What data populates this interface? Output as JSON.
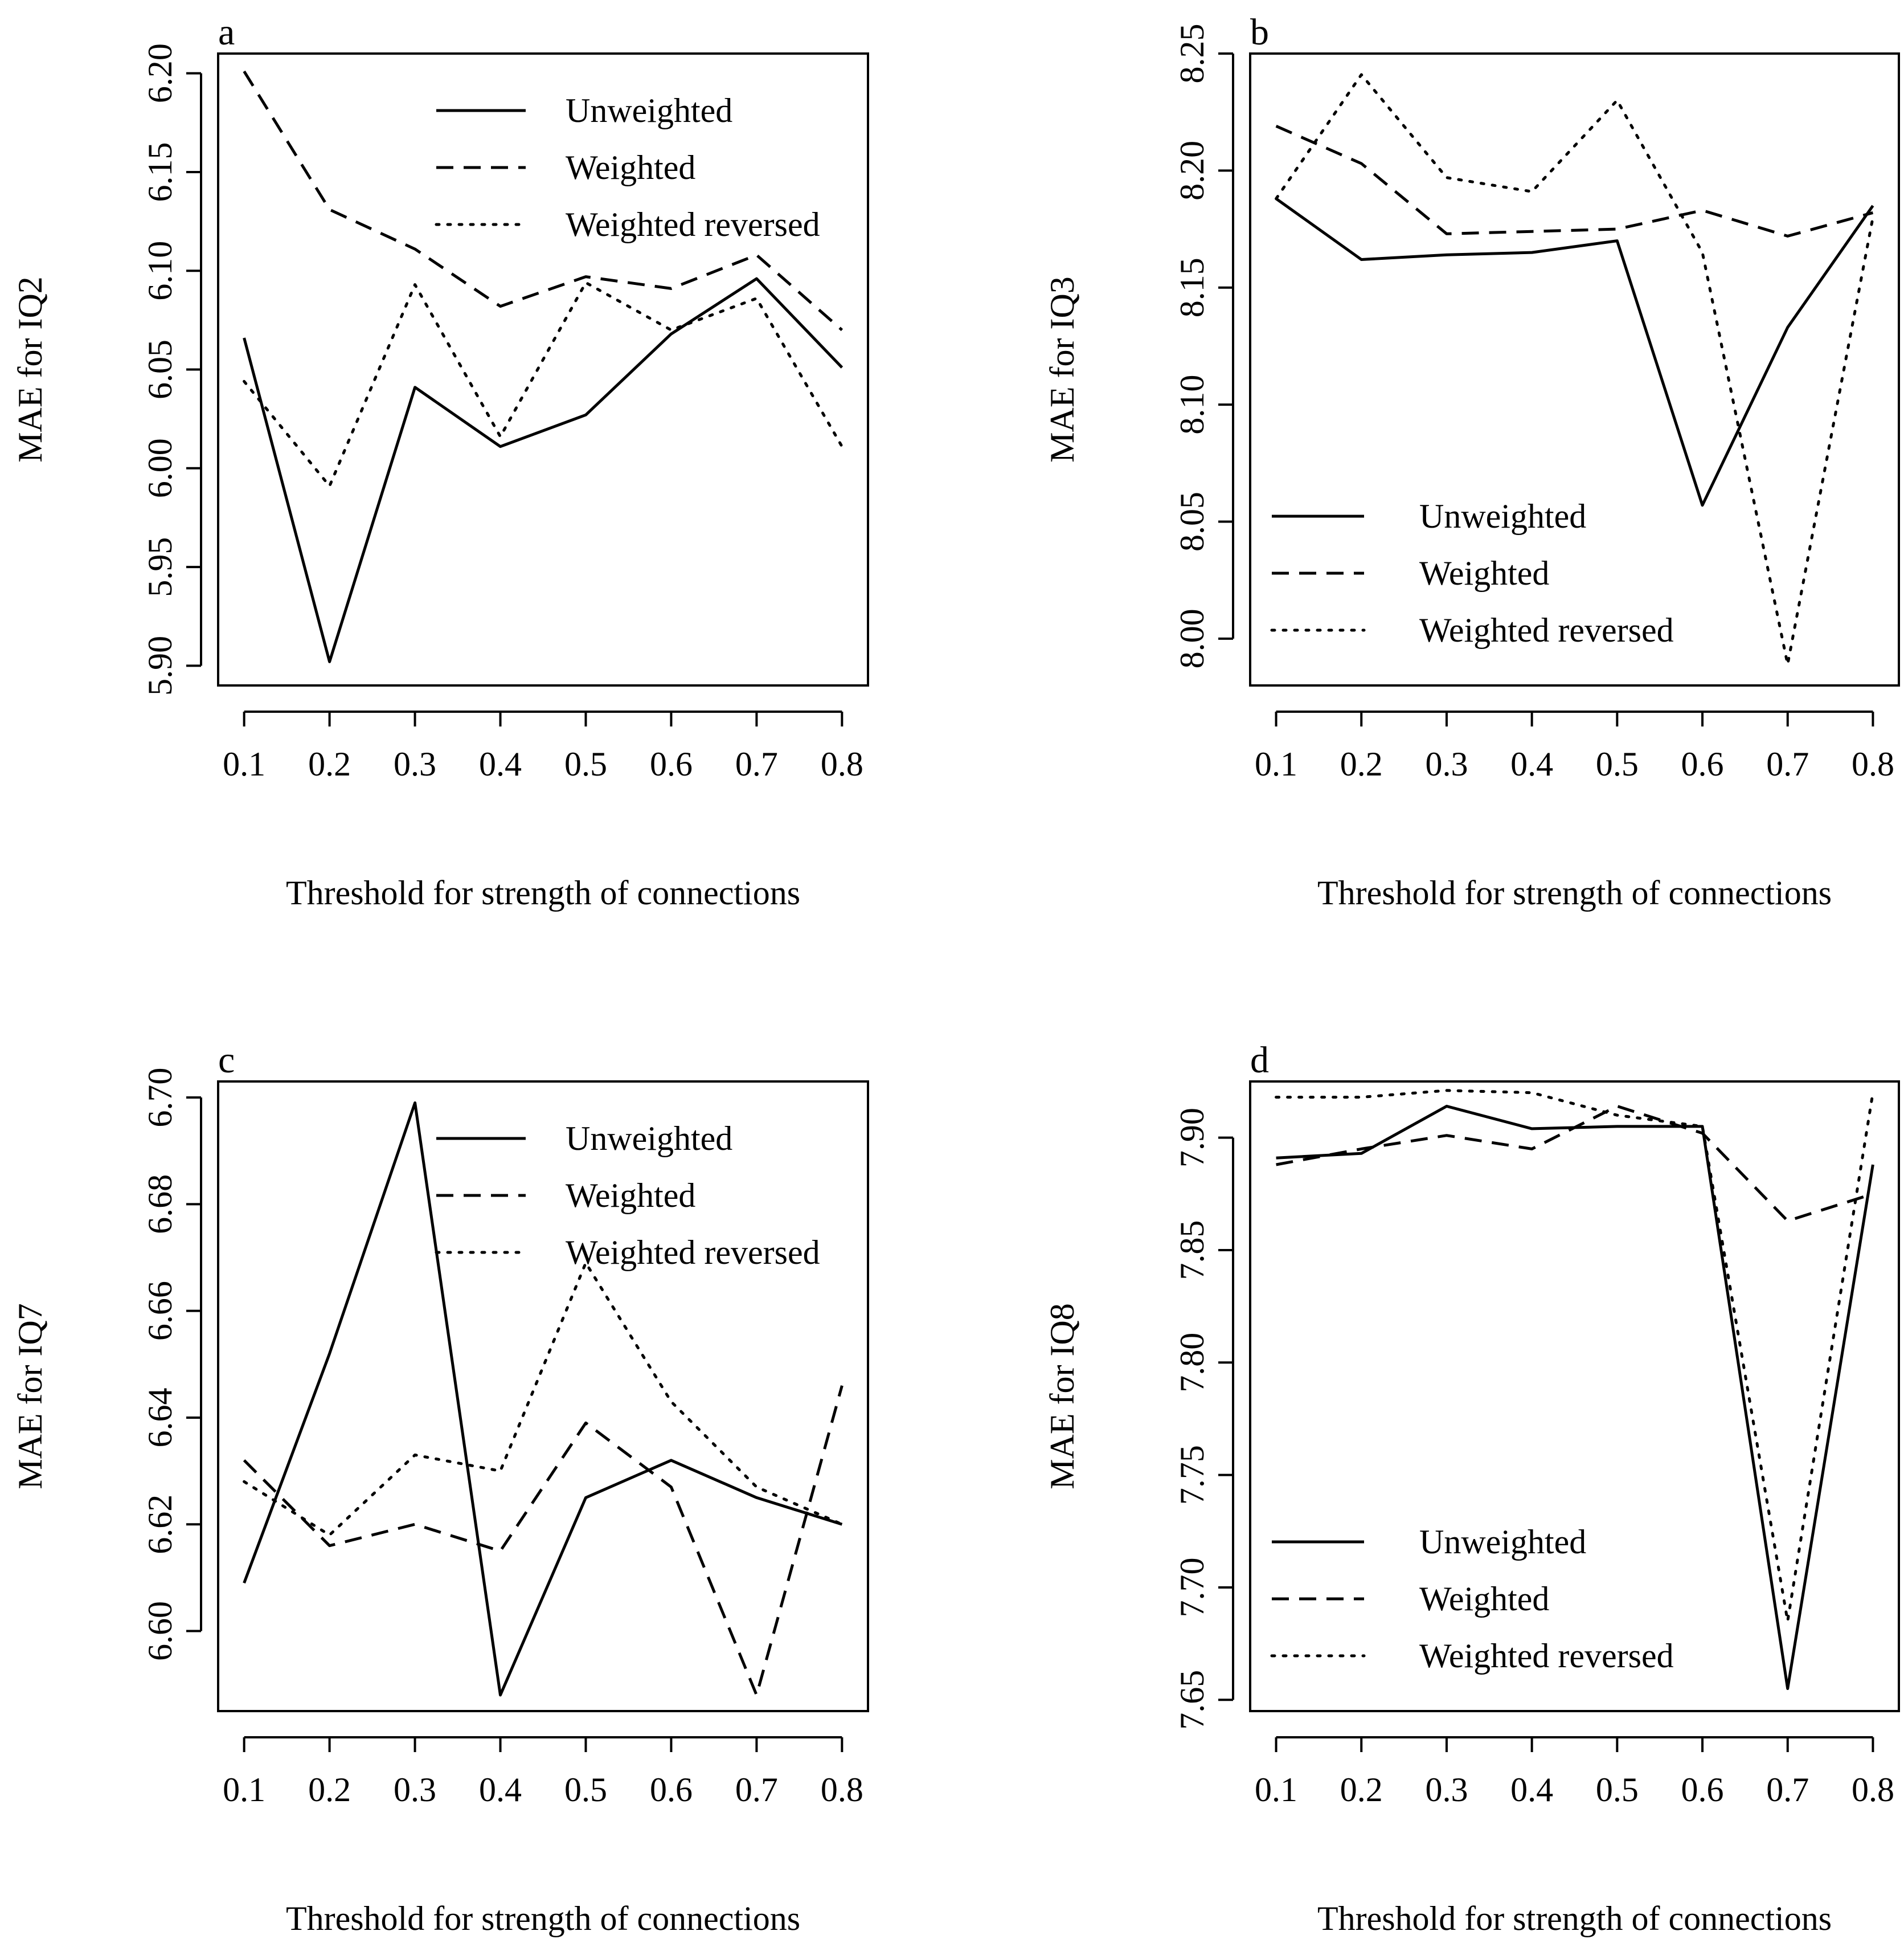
{
  "chart_data": [
    {
      "panel_label": "a",
      "type": "line",
      "xlabel": "Threshold for strength of connections",
      "ylabel": "MAE for IQ2",
      "x": [
        0.1,
        0.2,
        0.3,
        0.4,
        0.5,
        0.6,
        0.7,
        0.8
      ],
      "x_tick_labels": [
        "0.1",
        "0.2",
        "0.3",
        "0.4",
        "0.5",
        "0.6",
        "0.7",
        "0.8"
      ],
      "ylim": [
        5.89,
        6.21
      ],
      "y_ticks": [
        5.9,
        5.95,
        6.0,
        6.05,
        6.1,
        6.15,
        6.2
      ],
      "y_tick_labels": [
        "5.90",
        "5.95",
        "6.00",
        "6.05",
        "6.10",
        "6.15",
        "6.20"
      ],
      "legend_position": "top-right",
      "series": [
        {
          "name": "Unweighted",
          "style": "solid",
          "values": [
            6.066,
            5.902,
            6.041,
            6.011,
            6.027,
            6.068,
            6.096,
            6.051
          ]
        },
        {
          "name": "Weighted",
          "style": "dashed",
          "values": [
            6.201,
            6.131,
            6.111,
            6.082,
            6.097,
            6.091,
            6.108,
            6.07
          ]
        },
        {
          "name": "Weighted reversed",
          "style": "dotted",
          "values": [
            6.044,
            5.991,
            6.093,
            6.016,
            6.094,
            6.07,
            6.086,
            6.011
          ]
        }
      ]
    },
    {
      "panel_label": "b",
      "type": "line",
      "xlabel": "Threshold for strength of connections",
      "ylabel": "MAE for IQ3",
      "x": [
        0.1,
        0.2,
        0.3,
        0.4,
        0.5,
        0.6,
        0.7,
        0.8
      ],
      "x_tick_labels": [
        "0.1",
        "0.2",
        "0.3",
        "0.4",
        "0.5",
        "0.6",
        "0.7",
        "0.8"
      ],
      "ylim": [
        7.98,
        8.25
      ],
      "y_ticks": [
        8.0,
        8.05,
        8.1,
        8.15,
        8.2,
        8.25
      ],
      "y_tick_labels": [
        "8.00",
        "8.05",
        "8.10",
        "8.15",
        "8.20",
        "8.25"
      ],
      "legend_position": "bottom-left",
      "series": [
        {
          "name": "Unweighted",
          "style": "solid",
          "values": [
            8.188,
            8.162,
            8.164,
            8.165,
            8.17,
            8.057,
            8.133,
            8.185
          ]
        },
        {
          "name": "Weighted",
          "style": "dashed",
          "values": [
            8.219,
            8.203,
            8.173,
            8.174,
            8.175,
            8.183,
            8.172,
            8.182
          ]
        },
        {
          "name": "Weighted reversed",
          "style": "dotted",
          "values": [
            8.188,
            8.241,
            8.197,
            8.191,
            8.23,
            8.165,
            7.989,
            8.18
          ]
        }
      ]
    },
    {
      "panel_label": "c",
      "type": "line",
      "xlabel": "Threshold for strength of connections",
      "ylabel": "MAE for IQ7",
      "x": [
        0.1,
        0.2,
        0.3,
        0.4,
        0.5,
        0.6,
        0.7,
        0.8
      ],
      "x_tick_labels": [
        "0.1",
        "0.2",
        "0.3",
        "0.4",
        "0.5",
        "0.6",
        "0.7",
        "0.8"
      ],
      "ylim": [
        6.585,
        6.703
      ],
      "y_ticks": [
        6.6,
        6.62,
        6.64,
        6.66,
        6.68,
        6.7
      ],
      "y_tick_labels": [
        "6.60",
        "6.62",
        "6.64",
        "6.66",
        "6.68",
        "6.70"
      ],
      "legend_position": "top-right",
      "series": [
        {
          "name": "Unweighted",
          "style": "solid",
          "values": [
            6.609,
            6.652,
            6.699,
            6.588,
            6.625,
            6.632,
            6.625,
            6.62
          ]
        },
        {
          "name": "Weighted",
          "style": "dashed",
          "values": [
            6.632,
            6.616,
            6.62,
            6.615,
            6.639,
            6.627,
            6.588,
            6.646
          ]
        },
        {
          "name": "Weighted reversed",
          "style": "dotted",
          "values": [
            6.628,
            6.618,
            6.633,
            6.63,
            6.669,
            6.643,
            6.627,
            6.62
          ]
        }
      ]
    },
    {
      "panel_label": "d",
      "type": "line",
      "xlabel": "Threshold for strength of connections",
      "ylabel": "MAE for IQ8",
      "x": [
        0.1,
        0.2,
        0.3,
        0.4,
        0.5,
        0.6,
        0.7,
        0.8
      ],
      "x_tick_labels": [
        "0.1",
        "0.2",
        "0.3",
        "0.4",
        "0.5",
        "0.6",
        "0.7",
        "0.8"
      ],
      "ylim": [
        7.645,
        7.925
      ],
      "y_ticks": [
        7.65,
        7.7,
        7.75,
        7.8,
        7.85,
        7.9
      ],
      "y_tick_labels": [
        "7.65",
        "7.70",
        "7.75",
        "7.80",
        "7.85",
        "7.90"
      ],
      "legend_position": "bottom-left",
      "series": [
        {
          "name": "Unweighted",
          "style": "solid",
          "values": [
            7.891,
            7.893,
            7.914,
            7.904,
            7.905,
            7.905,
            7.655,
            7.888
          ]
        },
        {
          "name": "Weighted",
          "style": "dashed",
          "values": [
            7.888,
            7.895,
            7.901,
            7.895,
            7.914,
            7.902,
            7.863,
            7.875
          ]
        },
        {
          "name": "Weighted reversed",
          "style": "dotted",
          "values": [
            7.918,
            7.918,
            7.921,
            7.92,
            7.91,
            7.905,
            7.685,
            7.92
          ]
        }
      ]
    }
  ]
}
